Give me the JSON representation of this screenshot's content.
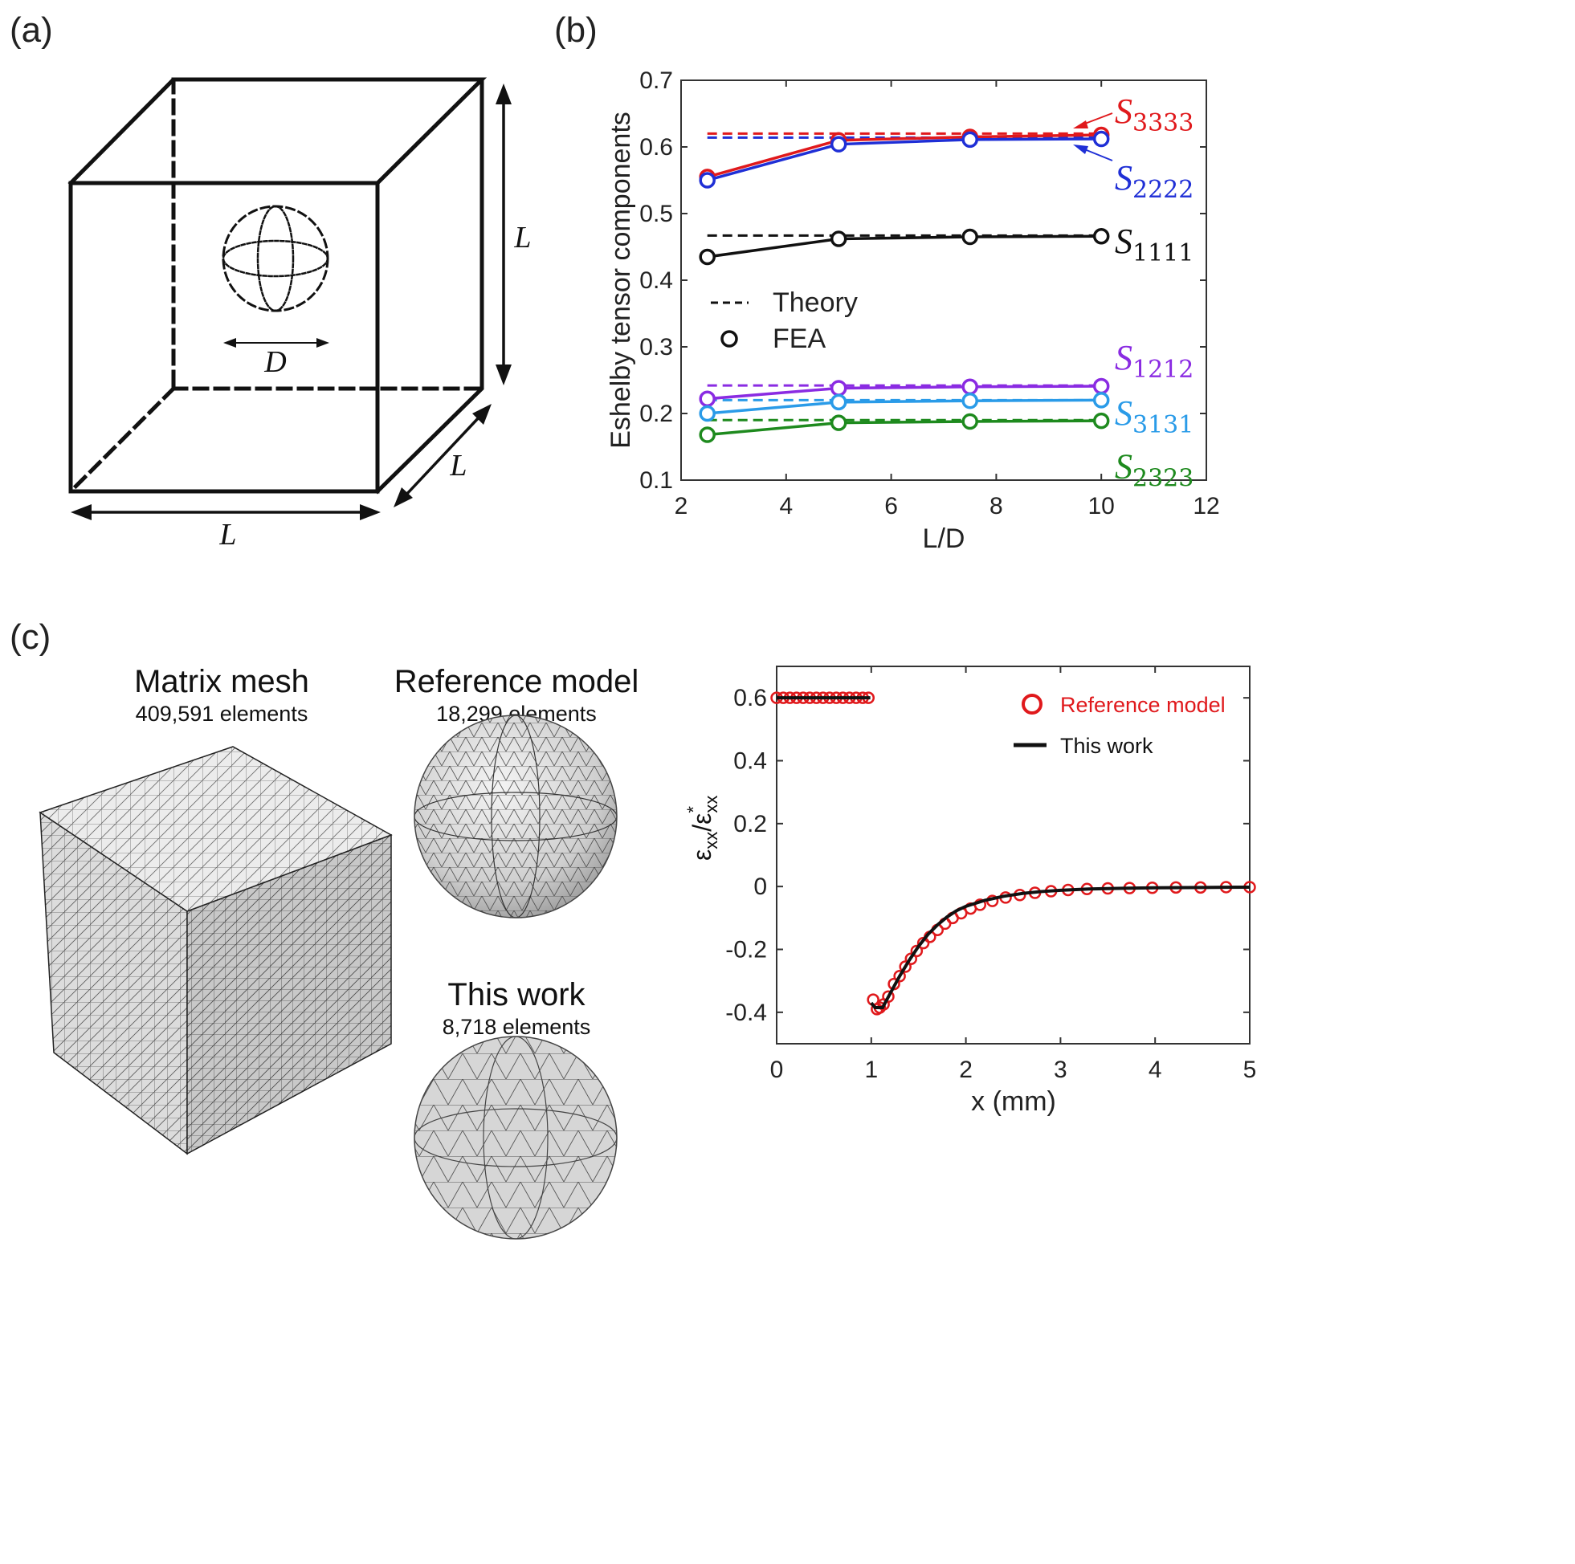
{
  "panel_a": {
    "label": "(a)",
    "dim_L": "L",
    "dim_D": "D"
  },
  "panel_c": {
    "label": "(c)",
    "matrix_title": "Matrix mesh",
    "matrix_sub": "409,591 elements",
    "ref_title": "Reference model",
    "ref_sub": "18,299 elements",
    "work_title": "This work",
    "work_sub": "8,718 elements"
  },
  "colors": {
    "red": "#e0191c",
    "blue": "#1f2fd6",
    "black": "#111111",
    "purple": "#8a2be2",
    "cyan": "#2a9be8",
    "green": "#1e8a1e"
  },
  "chart_data": [
    {
      "panel": "(b)",
      "type": "line",
      "ylabel": "Eshelby tensor components",
      "xlabel": "L/D",
      "xlim": [
        2,
        12
      ],
      "ylim": [
        0.1,
        0.7
      ],
      "xticks": [
        "2",
        "4",
        "6",
        "8",
        "10",
        "12"
      ],
      "yticks": [
        "0.1",
        "0.2",
        "0.3",
        "0.4",
        "0.5",
        "0.6",
        "0.7"
      ],
      "legend": {
        "theory": "Theory",
        "fea": "FEA",
        "placement": "center-left"
      },
      "x": [
        2.5,
        5,
        7.5,
        10
      ],
      "series": [
        {
          "name": "S3333",
          "base": "S",
          "sub": "3333",
          "color": "red",
          "theory": 0.62,
          "fea": [
            0.555,
            0.61,
            0.615,
            0.618
          ]
        },
        {
          "name": "S2222",
          "base": "S",
          "sub": "2222",
          "color": "blue",
          "theory": 0.614,
          "fea": [
            0.55,
            0.604,
            0.611,
            0.612
          ]
        },
        {
          "name": "S1111",
          "base": "S",
          "sub": "1111",
          "color": "black",
          "theory": 0.467,
          "fea": [
            0.435,
            0.462,
            0.465,
            0.466
          ]
        },
        {
          "name": "S1212",
          "base": "S",
          "sub": "1212",
          "color": "purple",
          "theory": 0.242,
          "fea": [
            0.222,
            0.238,
            0.24,
            0.241
          ]
        },
        {
          "name": "S3131",
          "base": "S",
          "sub": "3131",
          "color": "cyan",
          "theory": 0.22,
          "fea": [
            0.2,
            0.217,
            0.219,
            0.22
          ]
        },
        {
          "name": "S2323",
          "base": "S",
          "sub": "2323",
          "color": "green",
          "theory": 0.19,
          "fea": [
            0.168,
            0.186,
            0.188,
            0.189
          ]
        }
      ]
    },
    {
      "panel": "(c)",
      "type": "line",
      "ylabel_base": "ε",
      "ylabel_sub": "xx",
      "ylabel_star": "*",
      "xlabel": "x (mm)",
      "xlim": [
        0,
        5
      ],
      "ylim": [
        -0.5,
        0.7
      ],
      "xticks": [
        "0",
        "1",
        "2",
        "3",
        "4",
        "5"
      ],
      "yticks": [
        "-0.4",
        "-0.2",
        "0",
        "0.2",
        "0.4",
        "0.6"
      ],
      "legend": {
        "reference": "Reference model",
        "work": "This work",
        "placement": "top-right"
      },
      "this_work": {
        "x": [
          0,
          0.99,
          1.0,
          1.04,
          1.12,
          1.2,
          1.3,
          1.4,
          1.5,
          1.6,
          1.7,
          1.8,
          1.9,
          2.0,
          2.2,
          2.4,
          2.6,
          2.8,
          3.0,
          3.3,
          3.6,
          4.0,
          4.5,
          5.0
        ],
        "y": [
          0.6,
          0.6,
          -0.37,
          -0.385,
          -0.385,
          -0.34,
          -0.285,
          -0.235,
          -0.19,
          -0.152,
          -0.122,
          -0.097,
          -0.077,
          -0.063,
          -0.044,
          -0.031,
          -0.022,
          -0.016,
          -0.012,
          -0.008,
          -0.006,
          -0.004,
          -0.003,
          -0.002
        ]
      },
      "reference_model": {
        "x": [
          0,
          0.07,
          0.14,
          0.21,
          0.28,
          0.35,
          0.42,
          0.49,
          0.56,
          0.63,
          0.7,
          0.77,
          0.84,
          0.91,
          0.97,
          1.02,
          1.06,
          1.09,
          1.13,
          1.18,
          1.24,
          1.3,
          1.36,
          1.42,
          1.48,
          1.55,
          1.62,
          1.7,
          1.78,
          1.86,
          1.95,
          2.05,
          2.15,
          2.28,
          2.42,
          2.57,
          2.73,
          2.9,
          3.08,
          3.28,
          3.5,
          3.73,
          3.97,
          4.22,
          4.48,
          4.75,
          5.0
        ],
        "y": [
          0.6,
          0.6,
          0.6,
          0.6,
          0.6,
          0.6,
          0.6,
          0.6,
          0.6,
          0.6,
          0.6,
          0.6,
          0.6,
          0.6,
          0.6,
          -0.36,
          -0.39,
          -0.385,
          -0.375,
          -0.35,
          -0.31,
          -0.285,
          -0.255,
          -0.23,
          -0.205,
          -0.18,
          -0.16,
          -0.138,
          -0.118,
          -0.1,
          -0.085,
          -0.07,
          -0.058,
          -0.046,
          -0.035,
          -0.027,
          -0.02,
          -0.015,
          -0.011,
          -0.008,
          -0.006,
          -0.005,
          -0.004,
          -0.003,
          -0.003,
          -0.002,
          -0.002
        ]
      }
    }
  ]
}
